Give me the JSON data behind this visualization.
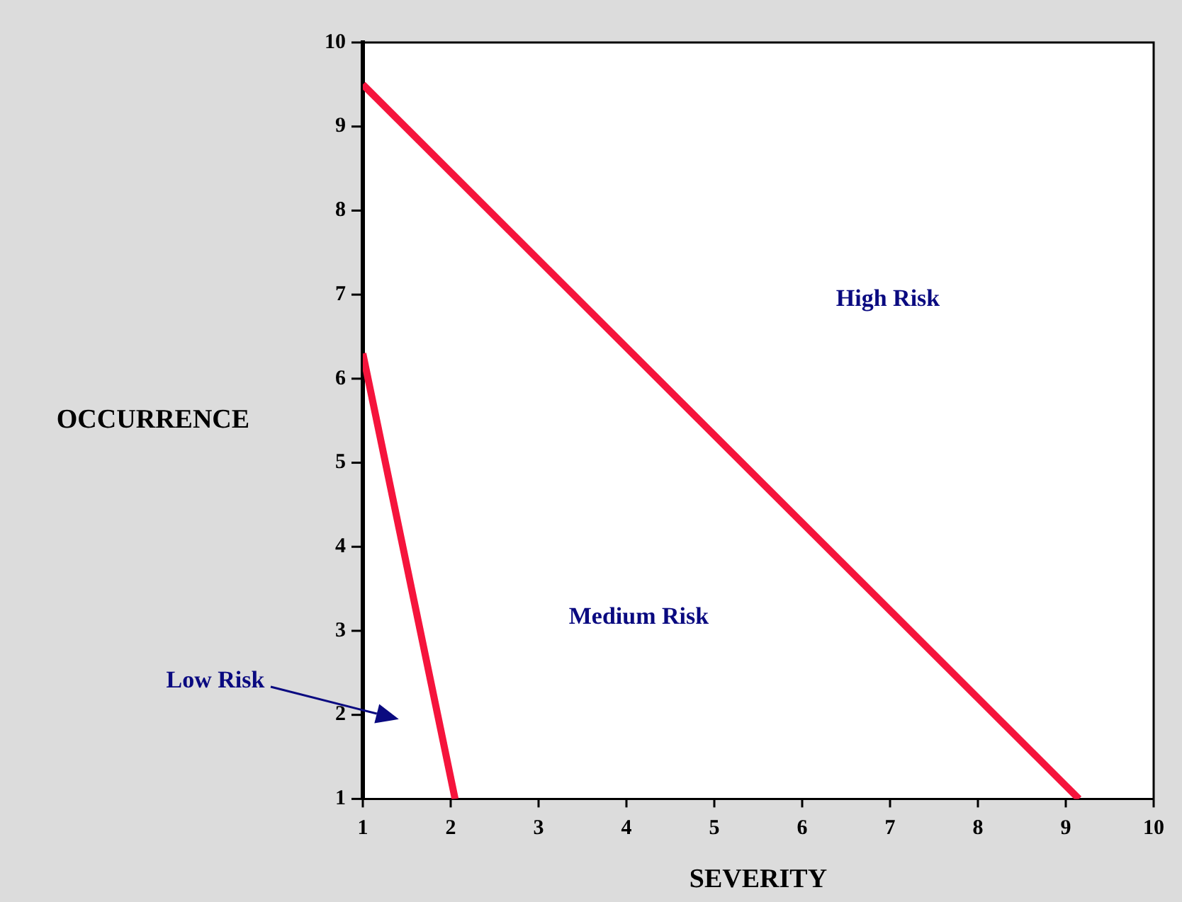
{
  "chart_data": {
    "type": "line",
    "xlabel": "SEVERITY",
    "ylabel": "OCCURRENCE",
    "series": [
      {
        "color": "#f5143c",
        "x": [
          1,
          9.15
        ],
        "values": [
          9.5,
          1
        ]
      },
      {
        "color": "#f5143c",
        "x": [
          1,
          2.05
        ],
        "values": [
          6.3,
          1
        ]
      }
    ],
    "xlim": [
      1,
      10
    ],
    "xticks": [
      1,
      2,
      3,
      4,
      5,
      6,
      7,
      8,
      9,
      10
    ],
    "ylim": [
      1,
      10
    ],
    "yticks": [
      1,
      2,
      3,
      4,
      5,
      6,
      7,
      8,
      9,
      10
    ],
    "grid": false,
    "legend": false,
    "marker": "none",
    "line_style": "solid",
    "annotations": [
      "High Risk",
      "Medium Risk",
      "Low Risk"
    ]
  }
}
